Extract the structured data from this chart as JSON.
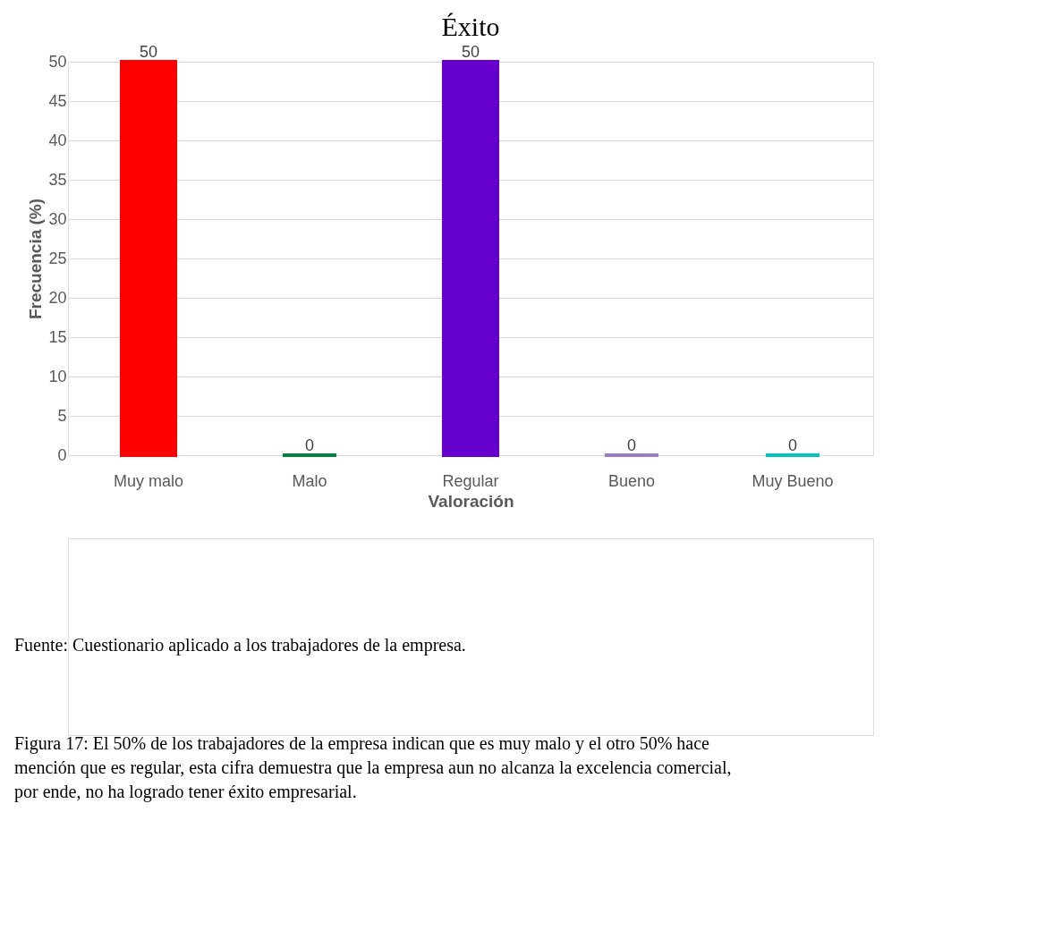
{
  "chart_data": {
    "type": "bar",
    "title": "Éxito",
    "xlabel": "Valoración",
    "ylabel": "Frecuencia (%)",
    "categories": [
      "Muy malo",
      "Malo",
      "Regular",
      "Bueno",
      "Muy Bueno"
    ],
    "values": [
      50,
      0,
      50,
      0,
      0
    ],
    "colors": [
      "#ff0000",
      "#00843d",
      "#6600cc",
      "#9e79c8",
      "#00c4c4"
    ],
    "ylim": [
      0,
      50
    ],
    "yticks": [
      0,
      5,
      10,
      15,
      20,
      25,
      30,
      35,
      40,
      45,
      50
    ],
    "grid": "y",
    "data_labels": true,
    "annotations": [
      "Figura 17: El 50% de los trabajadores de la empresa indican que es muy malo y el otro 50% hace mención que es regular, esta cifra demuestra que la empresa aun no alcanza la excelencia comercial, por ende, no ha logrado tener éxito empresarial.",
      "Fuente: Cuestionario aplicado a los trabajadores de la empresa."
    ]
  }
}
